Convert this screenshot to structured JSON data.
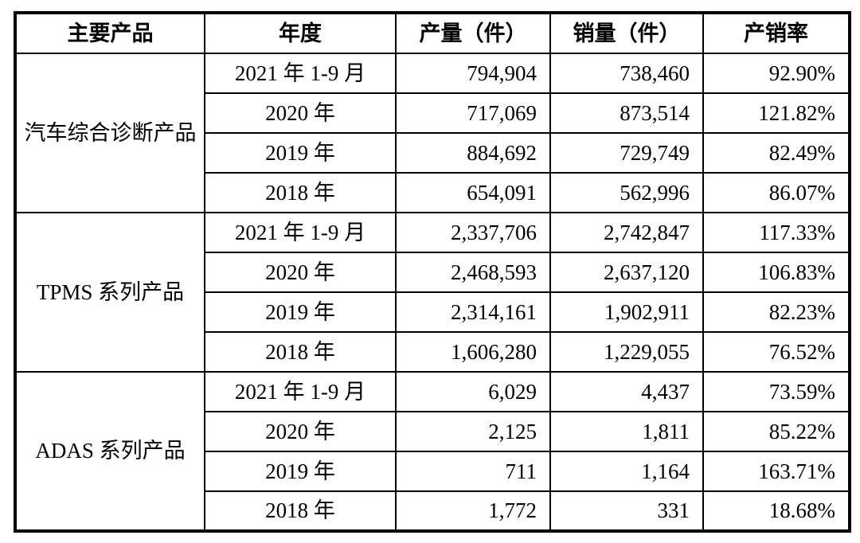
{
  "table": {
    "headers": [
      "主要产品",
      "年度",
      "产量（件）",
      "销量（件）",
      "产销率"
    ],
    "groups": [
      {
        "product": "汽车综合诊断产品",
        "rows": [
          {
            "period": "2021 年 1-9 月",
            "production": "794,904",
            "sales": "738,460",
            "ratio": "92.90%"
          },
          {
            "period": "2020 年",
            "production": "717,069",
            "sales": "873,514",
            "ratio": "121.82%"
          },
          {
            "period": "2019 年",
            "production": "884,692",
            "sales": "729,749",
            "ratio": "82.49%"
          },
          {
            "period": "2018 年",
            "production": "654,091",
            "sales": "562,996",
            "ratio": "86.07%"
          }
        ]
      },
      {
        "product": "TPMS 系列产品",
        "rows": [
          {
            "period": "2021 年 1-9 月",
            "production": "2,337,706",
            "sales": "2,742,847",
            "ratio": "117.33%"
          },
          {
            "period": "2020 年",
            "production": "2,468,593",
            "sales": "2,637,120",
            "ratio": "106.83%"
          },
          {
            "period": "2019 年",
            "production": "2,314,161",
            "sales": "1,902,911",
            "ratio": "82.23%"
          },
          {
            "period": "2018 年",
            "production": "1,606,280",
            "sales": "1,229,055",
            "ratio": "76.52%"
          }
        ]
      },
      {
        "product": "ADAS 系列产品",
        "rows": [
          {
            "period": "2021 年 1-9 月",
            "production": "6,029",
            "sales": "4,437",
            "ratio": "73.59%"
          },
          {
            "period": "2020 年",
            "production": "2,125",
            "sales": "1,811",
            "ratio": "85.22%"
          },
          {
            "period": "2019 年",
            "production": "711",
            "sales": "1,164",
            "ratio": "163.71%"
          },
          {
            "period": "2018 年",
            "production": "1,772",
            "sales": "331",
            "ratio": "18.68%"
          }
        ]
      }
    ]
  },
  "colors": {
    "border": "#000000",
    "text": "#000000",
    "background": "#ffffff"
  }
}
